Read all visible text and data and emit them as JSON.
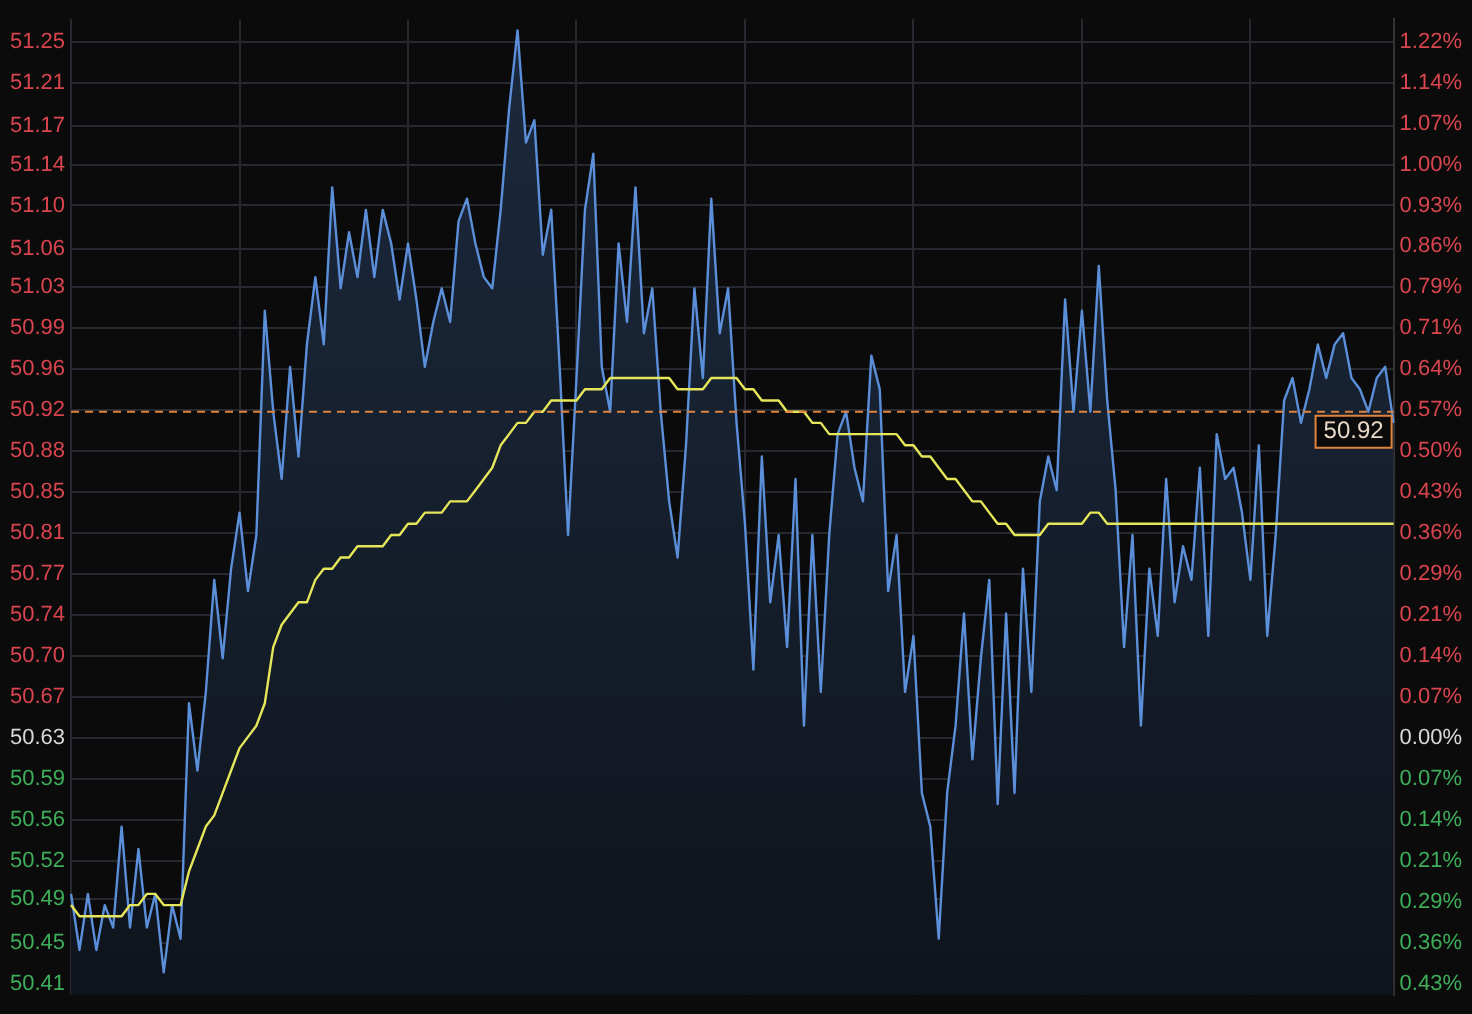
{
  "chart_data": {
    "type": "area",
    "categories": [
      null,
      null,
      null,
      null,
      null,
      null,
      null,
      null,
      null,
      null,
      null,
      null,
      null,
      null,
      null,
      null,
      null,
      null,
      null,
      null,
      null,
      null,
      null,
      null,
      null,
      null,
      null,
      null,
      null,
      null,
      null,
      null,
      null,
      null,
      null,
      null,
      null,
      null,
      null,
      null,
      null,
      null,
      null,
      null,
      null,
      null,
      null,
      null,
      null,
      null,
      null,
      null,
      null,
      null,
      null,
      null,
      null,
      null,
      null,
      null,
      null,
      null,
      null,
      null,
      null,
      null,
      null,
      null,
      null,
      null,
      null,
      null,
      null,
      null,
      null,
      null,
      null,
      null,
      null,
      null,
      null,
      null,
      null,
      null,
      null,
      null,
      null,
      null,
      null,
      null,
      null,
      null,
      null,
      null,
      null,
      null,
      null,
      null,
      null,
      null,
      null,
      null,
      null,
      null,
      null,
      null,
      null,
      null,
      null,
      null,
      null,
      null,
      null,
      null,
      null,
      null,
      null,
      null,
      null,
      null,
      null,
      null,
      null,
      null,
      null,
      null,
      null,
      null,
      null,
      null,
      null,
      null,
      null,
      null,
      null,
      null,
      null,
      null,
      null,
      null,
      null,
      null,
      null,
      null,
      null,
      null,
      null,
      null,
      null,
      null,
      null,
      null,
      null,
      null,
      null,
      null,
      null,
      null
    ],
    "series": [
      {
        "type": "area",
        "color": "#5b8fd9",
        "values": [
          50.49,
          50.44,
          50.49,
          50.44,
          50.48,
          50.46,
          50.55,
          50.46,
          50.53,
          50.46,
          50.49,
          50.42,
          50.48,
          50.45,
          50.66,
          50.6,
          50.67,
          50.77,
          50.7,
          50.78,
          50.83,
          50.76,
          50.81,
          51.01,
          50.92,
          50.86,
          50.96,
          50.88,
          50.98,
          51.04,
          50.98,
          51.12,
          51.03,
          51.08,
          51.04,
          51.1,
          51.04,
          51.1,
          51.07,
          51.02,
          51.07,
          51.02,
          50.96,
          51.0,
          51.03,
          51.0,
          51.09,
          51.11,
          51.07,
          51.04,
          51.03,
          51.1,
          51.19,
          51.26,
          51.16,
          51.18,
          51.06,
          51.1,
          50.96,
          50.81,
          50.95,
          51.1,
          51.15,
          50.96,
          50.92,
          51.07,
          51.0,
          51.12,
          50.99,
          51.03,
          50.92,
          50.84,
          50.79,
          50.89,
          51.03,
          50.95,
          51.11,
          50.99,
          51.03,
          50.91,
          50.82,
          50.69,
          50.88,
          50.75,
          50.81,
          50.71,
          50.86,
          50.64,
          50.81,
          50.67,
          50.81,
          50.9,
          50.92,
          50.87,
          50.84,
          50.97,
          50.94,
          50.76,
          50.81,
          50.67,
          50.72,
          50.58,
          50.55,
          50.45,
          50.58,
          50.64,
          50.74,
          50.61,
          50.7,
          50.77,
          50.57,
          50.74,
          50.58,
          50.78,
          50.67,
          50.84,
          50.88,
          50.85,
          51.02,
          50.92,
          51.01,
          50.92,
          51.05,
          50.93,
          50.85,
          50.71,
          50.81,
          50.64,
          50.78,
          50.72,
          50.86,
          50.75,
          50.8,
          50.77,
          50.87,
          50.72,
          50.9,
          50.86,
          50.87,
          50.83,
          50.77,
          50.89,
          50.72,
          50.81,
          50.93,
          50.95,
          50.91,
          50.94,
          50.98,
          50.95,
          50.98,
          50.99,
          50.95,
          50.94,
          50.92,
          50.95,
          50.96,
          50.91
        ]
      },
      {
        "type": "line",
        "color": "#e6e65a",
        "values": [
          50.48,
          50.47,
          50.47,
          50.47,
          50.47,
          50.47,
          50.47,
          50.48,
          50.48,
          50.49,
          50.49,
          50.48,
          50.48,
          50.48,
          50.51,
          50.53,
          50.55,
          50.56,
          50.58,
          50.6,
          50.62,
          50.63,
          50.64,
          50.66,
          50.71,
          50.73,
          50.74,
          50.75,
          50.75,
          50.77,
          50.78,
          50.78,
          50.79,
          50.79,
          50.8,
          50.8,
          50.8,
          50.8,
          50.81,
          50.81,
          50.82,
          50.82,
          50.83,
          50.83,
          50.83,
          50.84,
          50.84,
          50.84,
          50.85,
          50.86,
          50.87,
          50.89,
          50.9,
          50.91,
          50.91,
          50.92,
          50.92,
          50.93,
          50.93,
          50.93,
          50.93,
          50.94,
          50.94,
          50.94,
          50.95,
          50.95,
          50.95,
          50.95,
          50.95,
          50.95,
          50.95,
          50.95,
          50.94,
          50.94,
          50.94,
          50.94,
          50.95,
          50.95,
          50.95,
          50.95,
          50.94,
          50.94,
          50.93,
          50.93,
          50.93,
          50.92,
          50.92,
          50.92,
          50.91,
          50.91,
          50.9,
          50.9,
          50.9,
          50.9,
          50.9,
          50.9,
          50.9,
          50.9,
          50.9,
          50.89,
          50.89,
          50.88,
          50.88,
          50.87,
          50.86,
          50.86,
          50.85,
          50.84,
          50.84,
          50.83,
          50.82,
          50.82,
          50.81,
          50.81,
          50.81,
          50.81,
          50.82,
          50.82,
          50.82,
          50.82,
          50.82,
          50.83,
          50.83,
          50.82,
          50.82,
          50.82,
          50.82,
          50.82,
          50.82,
          50.82,
          50.82,
          50.82,
          50.82,
          50.82,
          50.82,
          50.82,
          50.82,
          50.82,
          50.82,
          50.82,
          50.82,
          50.82,
          50.82,
          50.82,
          50.82,
          50.82,
          50.82,
          50.82,
          50.82,
          50.82,
          50.82,
          50.82,
          50.82,
          50.82,
          50.82,
          50.82,
          50.82,
          50.82
        ]
      }
    ],
    "ylim": [
      50.4,
      51.27
    ],
    "yticks": [
      50.41,
      {
        "value": 50.4465,
        "label": "50.45"
      },
      {
        "value": 50.4851,
        "label": "50.49"
      },
      {
        "value": 50.5196,
        "label": "50.52"
      },
      {
        "value": 50.5561,
        "label": "50.56"
      },
      {
        "value": 50.5926,
        "label": "50.59"
      },
      {
        "value": 50.6291,
        "label": "50.63"
      },
      {
        "value": 50.6657,
        "label": "50.67"
      },
      {
        "value": 50.7022,
        "label": "50.70"
      },
      {
        "value": 50.7387,
        "label": "50.74"
      },
      {
        "value": 50.7749,
        "label": "50.77"
      },
      {
        "value": 50.8117,
        "label": "50.81"
      },
      {
        "value": 50.8483,
        "label": "50.85"
      },
      {
        "value": 50.8848,
        "label": "50.88"
      },
      {
        "value": 50.9213,
        "label": "50.92"
      },
      {
        "value": 50.9578,
        "label": "50.96"
      },
      {
        "value": 50.9943,
        "label": "50.99"
      },
      {
        "value": 51.0309,
        "label": "51.03"
      },
      {
        "value": 51.0649,
        "label": "51.06"
      },
      {
        "value": 51.1039,
        "label": "51.10"
      },
      {
        "value": 51.1404,
        "label": "51.14"
      },
      {
        "value": 51.1749,
        "label": "51.17"
      },
      {
        "value": 51.2135,
        "label": "51.21"
      },
      51.25
    ],
    "y2lim": [
      -0.4485,
      1.2547
    ],
    "y2ticks": [
      {
        "value": -0.429,
        "label": "0.43%"
      },
      {
        "value": -0.3575,
        "label": "0.36%"
      },
      {
        "value": -0.286,
        "label": "0.29%"
      },
      {
        "value": -0.2145,
        "label": "0.21%"
      },
      {
        "value": -0.143,
        "label": "0.14%"
      },
      {
        "value": -0.0715,
        "label": "0.07%"
      },
      {
        "value": 0,
        "label": "0.00%"
      },
      {
        "value": 0.0715,
        "label": "0.07%"
      },
      {
        "value": 0.143,
        "label": "0.14%"
      },
      {
        "value": 0.2145,
        "label": "0.21%"
      },
      {
        "value": 0.286,
        "label": "0.29%"
      },
      {
        "value": 0.3575,
        "label": "0.36%"
      },
      {
        "value": 0.429,
        "label": "0.43%"
      },
      {
        "value": 0.5005,
        "label": "0.50%"
      },
      {
        "value": 0.572,
        "label": "0.57%"
      },
      {
        "value": 0.6435,
        "label": "0.64%"
      },
      {
        "value": 0.715,
        "label": "0.71%"
      },
      {
        "value": 0.7865,
        "label": "0.79%"
      },
      {
        "value": 0.858,
        "label": "0.86%"
      },
      {
        "value": 0.9295,
        "label": "0.93%"
      },
      {
        "value": 1.001,
        "label": "1.00%"
      },
      {
        "value": 1.0725,
        "label": "1.07%"
      },
      {
        "value": 1.144,
        "label": "1.14%"
      },
      {
        "value": 1.2155,
        "label": "1.22%"
      }
    ],
    "ref_lines": [
      {
        "axis": "y",
        "value": 50.92,
        "label": "50.92",
        "color": "#e0843c",
        "line_style": "dashed"
      }
    ],
    "grid": true,
    "legend": false,
    "tick_labels": "y",
    "marker": "none"
  }
}
